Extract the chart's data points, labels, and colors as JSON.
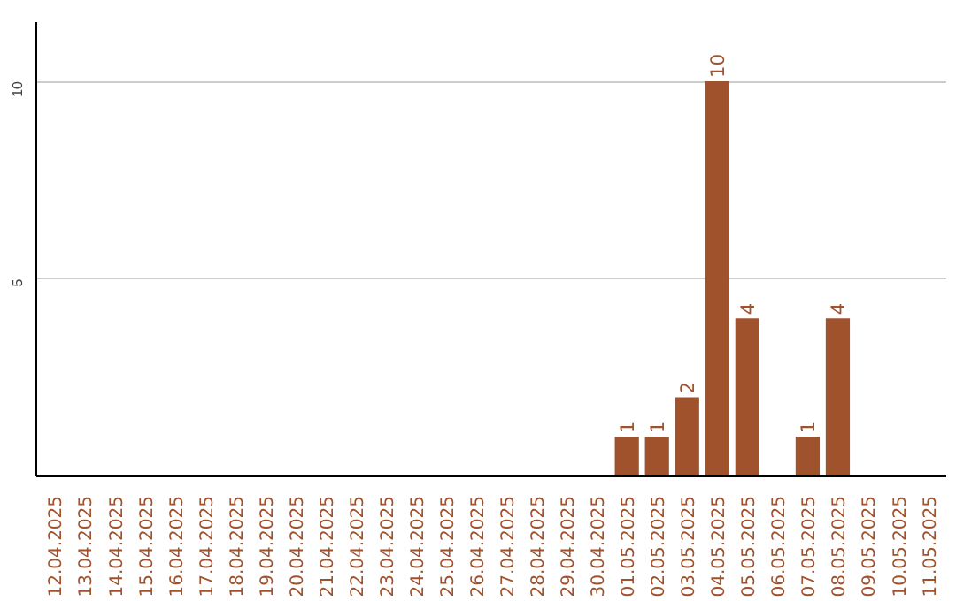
{
  "chart_data": {
    "type": "bar",
    "categories": [
      "12.04.2025",
      "13.04.2025",
      "14.04.2025",
      "15.04.2025",
      "16.04.2025",
      "17.04.2025",
      "18.04.2025",
      "19.04.2025",
      "20.04.2025",
      "21.04.2025",
      "22.04.2025",
      "23.04.2025",
      "24.04.2025",
      "25.04.2025",
      "26.04.2025",
      "27.04.2025",
      "28.04.2025",
      "29.04.2025",
      "30.04.2025",
      "01.05.2025",
      "02.05.2025",
      "03.05.2025",
      "04.05.2025",
      "05.05.2025",
      "06.05.2025",
      "07.05.2025",
      "08.05.2025",
      "09.05.2025",
      "10.05.2025",
      "11.05.2025"
    ],
    "values": [
      0,
      0,
      0,
      0,
      0,
      0,
      0,
      0,
      0,
      0,
      0,
      0,
      0,
      0,
      0,
      0,
      0,
      0,
      0,
      1,
      1,
      2,
      10,
      4,
      0,
      1,
      4,
      0,
      0,
      0
    ],
    "value_labels": [
      null,
      null,
      null,
      null,
      null,
      null,
      null,
      null,
      null,
      null,
      null,
      null,
      null,
      null,
      null,
      null,
      null,
      null,
      null,
      "1",
      "1",
      "2",
      "10",
      "4",
      null,
      "1",
      "4",
      null,
      null,
      null
    ],
    "color": "#a0522d",
    "ylim": [
      0,
      11.5
    ],
    "yticks": [
      5,
      10
    ],
    "grid": "y"
  }
}
